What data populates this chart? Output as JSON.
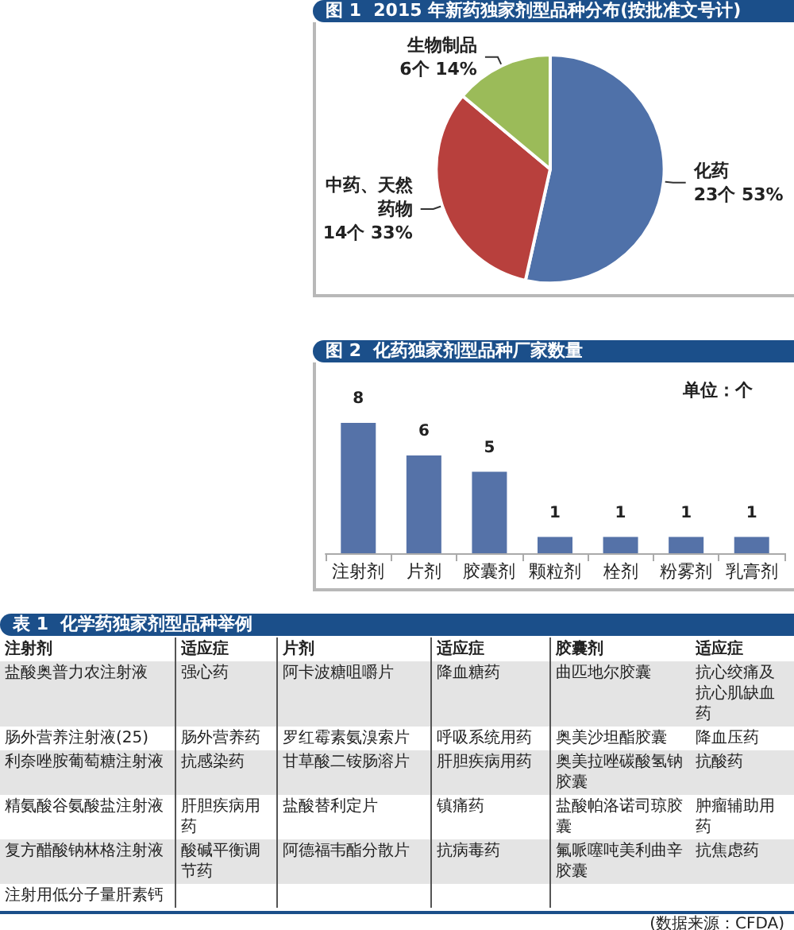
{
  "chart_data": [
    {
      "type": "pie",
      "title": "图 1  2015 年新药独家剂型品种分布(按批准文号计)",
      "categories": [
        "化药",
        "中药、天然药物",
        "生物制品"
      ],
      "values": [
        23,
        14,
        6
      ],
      "value_labels": [
        "23个 53%",
        "14个 33%",
        "6个 14%"
      ],
      "colors": [
        "#4f71a9",
        "#b8403d",
        "#9bbb59"
      ]
    },
    {
      "type": "bar",
      "title": "图 2  化药独家剂型品种厂家数量",
      "categories": [
        "注射剂",
        "片剂",
        "胶囊剂",
        "颗粒剂",
        "栓剂",
        "粉雾剂",
        "乳膏剂"
      ],
      "values": [
        8,
        6,
        5,
        1,
        1,
        1,
        1
      ],
      "color": "#5572a8",
      "data_labels": true,
      "annotations": [
        "单位：个"
      ]
    },
    {
      "type": "other",
      "title": "表 1  化学药独家剂型品种举例",
      "annotations": [
        "注射剂",
        "适应症",
        "片剂",
        "适应症",
        "胶囊剂",
        "适应症",
        "盐酸奥普力农注射液",
        "强心药",
        "阿卡波糖咀嚼片",
        "降血糖药",
        "曲匹地尔胶囊",
        "抗心绞痛及抗心肌缺血药",
        "肠外营养注射液(25)",
        "肠外营养药",
        "罗红霉素氨溴索片",
        "呼吸系统用药",
        "奥美沙坦酯胶囊",
        "降血压药",
        "利奈唑胺葡萄糖注射液",
        "抗感染药",
        "甘草酸二铵肠溶片",
        "肝胆疾病用药",
        "奥美拉唑碳酸氢钠胶囊",
        "抗酸药",
        "精氨酸谷氨酸盐注射液",
        "肝胆疾病用药",
        "盐酸替利定片",
        "镇痛药",
        "盐酸帕洛诺司琼胶囊",
        "肿瘤辅助用药",
        "复方醋酸钠林格注射液",
        "酸碱平衡调节药",
        "阿德福韦酯分散片",
        "抗病毒药",
        "氟哌噻吨美利曲辛胶囊",
        "抗焦虑药",
        "注射用低分子量肝素钙",
        "(数据来源：CFDA)"
      ]
    }
  ]
}
